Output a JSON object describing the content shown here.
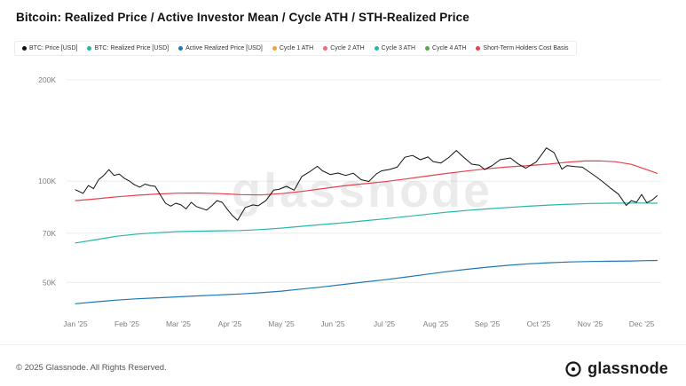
{
  "title": "Bitcoin: Realized Price / Active Investor Mean / Cycle ATH / STH-Realized Price",
  "watermark": "glassnode",
  "legend": [
    {
      "label": "BTC: Price [USD]",
      "color": "#111111"
    },
    {
      "label": "BTC: Realized Price [USD]",
      "color": "#29b6a8"
    },
    {
      "label": "Active Realized Price [USD]",
      "color": "#1f78b4"
    },
    {
      "label": "Cycle 1 ATH",
      "color": "#f0a33c"
    },
    {
      "label": "Cycle 2 ATH",
      "color": "#ee6a7c"
    },
    {
      "label": "Cycle 3 ATH",
      "color": "#29b6a8"
    },
    {
      "label": "Cycle 4 ATH",
      "color": "#55a848"
    },
    {
      "label": "Short-Term Holders Cost Basis",
      "color": "#e8414f"
    }
  ],
  "footer": {
    "copyright": "© 2025 Glassnode. All Rights Reserved.",
    "logo_text": "glassnode"
  },
  "chart_data": {
    "type": "line",
    "y_scale": "log",
    "unit": "USD (thousands)",
    "grid": true,
    "ylim_thousands": [
      40,
      200
    ],
    "yticks": [
      {
        "label": "200K",
        "value": 200
      },
      {
        "label": "100K",
        "value": 100
      },
      {
        "label": "70K",
        "value": 70
      },
      {
        "label": "50K",
        "value": 50
      }
    ],
    "xticks": [
      "Jan '25",
      "Feb '25",
      "Mar '25",
      "Apr '25",
      "May '25",
      "Jun '25",
      "Jul '25",
      "Aug '25",
      "Sep '25",
      "Oct '25",
      "Nov '25",
      "Dec '25"
    ],
    "series": [
      {
        "name": "BTC: Realized Price [USD]",
        "color": "#29b6a8",
        "width": 1.2,
        "points": [
          [
            0,
            65.5
          ],
          [
            0.4,
            67
          ],
          [
            0.8,
            68.6
          ],
          [
            1.2,
            69.6
          ],
          [
            1.6,
            70.3
          ],
          [
            2.0,
            70.8
          ],
          [
            2.4,
            71.0
          ],
          [
            2.8,
            71.2
          ],
          [
            3.2,
            71.3
          ],
          [
            3.6,
            71.8
          ],
          [
            4.0,
            72.5
          ],
          [
            4.4,
            73.4
          ],
          [
            4.8,
            74.3
          ],
          [
            5.2,
            75.2
          ],
          [
            5.6,
            76.2
          ],
          [
            6.0,
            77.2
          ],
          [
            6.4,
            78.4
          ],
          [
            6.8,
            79.6
          ],
          [
            7.2,
            80.8
          ],
          [
            7.6,
            81.8
          ],
          [
            8.0,
            82.7
          ],
          [
            8.4,
            83.5
          ],
          [
            8.8,
            84.2
          ],
          [
            9.2,
            84.9
          ],
          [
            9.6,
            85.4
          ],
          [
            10.0,
            85.8
          ],
          [
            10.4,
            86.0
          ],
          [
            10.8,
            86.1
          ],
          [
            11.0,
            86.1
          ],
          [
            11.3,
            86.0
          ]
        ]
      },
      {
        "name": "Active Realized Price [USD]",
        "color": "#1f78b4",
        "width": 1.2,
        "points": [
          [
            0,
            43.2
          ],
          [
            0.4,
            43.8
          ],
          [
            0.8,
            44.3
          ],
          [
            1.2,
            44.7
          ],
          [
            1.6,
            45.0
          ],
          [
            2.0,
            45.3
          ],
          [
            2.4,
            45.6
          ],
          [
            2.8,
            45.9
          ],
          [
            3.2,
            46.2
          ],
          [
            3.6,
            46.6
          ],
          [
            4.0,
            47.1
          ],
          [
            4.4,
            47.8
          ],
          [
            4.8,
            48.5
          ],
          [
            5.2,
            49.3
          ],
          [
            5.6,
            50.1
          ],
          [
            6.0,
            50.9
          ],
          [
            6.4,
            51.8
          ],
          [
            6.8,
            52.8
          ],
          [
            7.2,
            53.8
          ],
          [
            7.6,
            54.7
          ],
          [
            8.0,
            55.5
          ],
          [
            8.4,
            56.2
          ],
          [
            8.8,
            56.8
          ],
          [
            9.2,
            57.2
          ],
          [
            9.6,
            57.5
          ],
          [
            10.0,
            57.7
          ],
          [
            10.4,
            57.8
          ],
          [
            10.8,
            57.9
          ],
          [
            11.0,
            58.0
          ],
          [
            11.3,
            58.1
          ]
        ]
      },
      {
        "name": "Short-Term Holders Cost Basis",
        "color": "#e8414f",
        "width": 1.2,
        "points": [
          [
            0,
            87.5
          ],
          [
            0.4,
            88.6
          ],
          [
            0.8,
            89.8
          ],
          [
            1.2,
            90.8
          ],
          [
            1.6,
            91.6
          ],
          [
            2.0,
            92.1
          ],
          [
            2.4,
            92.2
          ],
          [
            2.8,
            91.8
          ],
          [
            3.2,
            91.2
          ],
          [
            3.6,
            91.0
          ],
          [
            4.0,
            91.8
          ],
          [
            4.4,
            93.2
          ],
          [
            4.8,
            95.0
          ],
          [
            5.2,
            96.8
          ],
          [
            5.6,
            98.2
          ],
          [
            6.0,
            99.6
          ],
          [
            6.4,
            101.4
          ],
          [
            6.8,
            103.4
          ],
          [
            7.2,
            105.4
          ],
          [
            7.6,
            107.2
          ],
          [
            8.0,
            108.8
          ],
          [
            8.4,
            110.2
          ],
          [
            8.8,
            111.2
          ],
          [
            9.2,
            112.4
          ],
          [
            9.6,
            114.0
          ],
          [
            9.9,
            114.8
          ],
          [
            10.2,
            114.9
          ],
          [
            10.5,
            114.2
          ],
          [
            10.8,
            112.2
          ],
          [
            11.0,
            109.5
          ],
          [
            11.15,
            107.5
          ],
          [
            11.3,
            105.5
          ]
        ]
      },
      {
        "name": "BTC: Price [USD]",
        "color": "#111111",
        "width": 1.0,
        "points": [
          [
            0,
            94.3
          ],
          [
            0.15,
            92
          ],
          [
            0.25,
            97
          ],
          [
            0.35,
            95
          ],
          [
            0.45,
            101
          ],
          [
            0.55,
            104
          ],
          [
            0.65,
            108.2
          ],
          [
            0.75,
            104
          ],
          [
            0.85,
            105
          ],
          [
            0.95,
            102
          ],
          [
            1.05,
            100
          ],
          [
            1.15,
            97.5
          ],
          [
            1.25,
            96
          ],
          [
            1.35,
            98
          ],
          [
            1.45,
            97
          ],
          [
            1.55,
            96.5
          ],
          [
            1.65,
            91
          ],
          [
            1.75,
            86
          ],
          [
            1.85,
            84.3
          ],
          [
            1.95,
            86
          ],
          [
            2.05,
            85
          ],
          [
            2.15,
            82.7
          ],
          [
            2.25,
            86.5
          ],
          [
            2.35,
            84
          ],
          [
            2.45,
            83
          ],
          [
            2.55,
            82
          ],
          [
            2.65,
            84.5
          ],
          [
            2.75,
            87.5
          ],
          [
            2.85,
            86.5
          ],
          [
            2.95,
            82.5
          ],
          [
            3.05,
            79
          ],
          [
            3.15,
            76.5
          ],
          [
            3.3,
            83.5
          ],
          [
            3.45,
            85
          ],
          [
            3.55,
            84.5
          ],
          [
            3.7,
            87.5
          ],
          [
            3.85,
            94
          ],
          [
            3.95,
            94.5
          ],
          [
            4.1,
            96.5
          ],
          [
            4.25,
            94
          ],
          [
            4.4,
            103.3
          ],
          [
            4.55,
            106.6
          ],
          [
            4.7,
            110.7
          ],
          [
            4.8,
            107.3
          ],
          [
            4.95,
            104.6
          ],
          [
            5.1,
            105.7
          ],
          [
            5.25,
            104
          ],
          [
            5.4,
            105.6
          ],
          [
            5.55,
            101
          ],
          [
            5.7,
            99.8
          ],
          [
            5.85,
            105.2
          ],
          [
            5.95,
            107.3
          ],
          [
            6.1,
            108.3
          ],
          [
            6.25,
            110
          ],
          [
            6.4,
            117.8
          ],
          [
            6.55,
            119.2
          ],
          [
            6.7,
            115.8
          ],
          [
            6.85,
            118
          ],
          [
            6.95,
            114.3
          ],
          [
            7.1,
            113.2
          ],
          [
            7.25,
            117.5
          ],
          [
            7.4,
            123.3
          ],
          [
            7.55,
            117.5
          ],
          [
            7.7,
            112.3
          ],
          [
            7.85,
            111.5
          ],
          [
            7.95,
            108.3
          ],
          [
            8.1,
            111.3
          ],
          [
            8.25,
            115.8
          ],
          [
            8.45,
            117.2
          ],
          [
            8.6,
            112.5
          ],
          [
            8.75,
            109.3
          ],
          [
            8.95,
            114
          ],
          [
            9.05,
            119.5
          ],
          [
            9.15,
            125.5
          ],
          [
            9.3,
            121.5
          ],
          [
            9.45,
            108.5
          ],
          [
            9.55,
            111.2
          ],
          [
            9.7,
            110.5
          ],
          [
            9.85,
            110
          ],
          [
            9.95,
            107.3
          ],
          [
            10.1,
            103.5
          ],
          [
            10.25,
            99.5
          ],
          [
            10.4,
            95.2
          ],
          [
            10.55,
            91.5
          ],
          [
            10.7,
            84.7
          ],
          [
            10.8,
            87.5
          ],
          [
            10.9,
            86.5
          ],
          [
            11.0,
            91.3
          ],
          [
            11.1,
            86.3
          ],
          [
            11.2,
            87.8
          ],
          [
            11.3,
            90.5
          ]
        ]
      }
    ]
  }
}
